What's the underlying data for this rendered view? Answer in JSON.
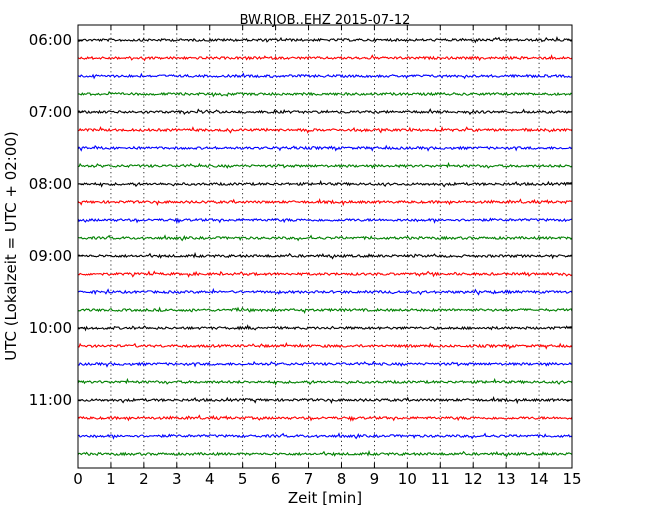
{
  "chart_data": {
    "type": "line",
    "title": "BW.RJOB..EHZ 2015-07-12",
    "xlabel": "Zeit  [min]",
    "ylabel": "UTC (Lokalzeit = UTC + 02:00)",
    "xlim": [
      0,
      15
    ],
    "x_ticks": [
      "0",
      "1",
      "2",
      "3",
      "4",
      "5",
      "6",
      "7",
      "8",
      "9",
      "10",
      "11",
      "12",
      "13",
      "14",
      "15"
    ],
    "y_ticks": [
      "06:00",
      "07:00",
      "08:00",
      "09:00",
      "10:00",
      "11:00"
    ],
    "grid": "vertical dotted lines at each minute",
    "color_cycle": [
      "#000000",
      "#ff0000",
      "#0000ff",
      "#008000"
    ],
    "trace_start_times": [
      "06:00",
      "06:15",
      "06:30",
      "06:45",
      "07:00",
      "07:15",
      "07:30",
      "07:45",
      "08:00",
      "08:15",
      "08:30",
      "08:45",
      "09:00",
      "09:15",
      "09:30",
      "09:45",
      "10:00",
      "10:15",
      "10:30",
      "10:45",
      "11:00",
      "11:15",
      "11:30",
      "11:45"
    ],
    "trace_duration_min": 15
  }
}
